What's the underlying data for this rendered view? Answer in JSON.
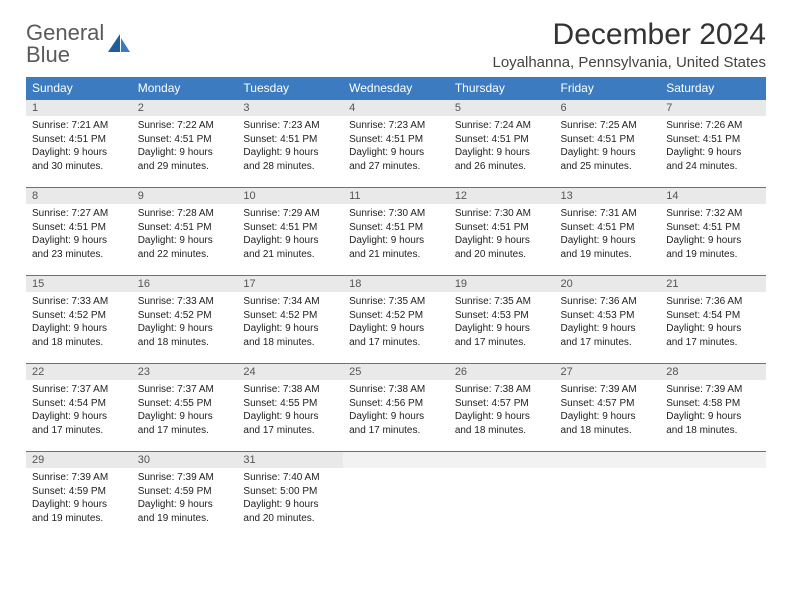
{
  "logo": {
    "line1": "General",
    "line2": "Blue"
  },
  "title": "December 2024",
  "location": "Loyalhanna, Pennsylvania, United States",
  "colors": {
    "header_bg": "#3c7bbf",
    "header_text": "#ffffff",
    "daynum_bg": "#e9e9e9",
    "border": "#3c7bbf",
    "title_text": "#333333",
    "body_text": "#222222"
  },
  "day_headers": [
    "Sunday",
    "Monday",
    "Tuesday",
    "Wednesday",
    "Thursday",
    "Friday",
    "Saturday"
  ],
  "weeks": [
    [
      {
        "n": "1",
        "sunrise": "Sunrise: 7:21 AM",
        "sunset": "Sunset: 4:51 PM",
        "dl1": "Daylight: 9 hours",
        "dl2": "and 30 minutes."
      },
      {
        "n": "2",
        "sunrise": "Sunrise: 7:22 AM",
        "sunset": "Sunset: 4:51 PM",
        "dl1": "Daylight: 9 hours",
        "dl2": "and 29 minutes."
      },
      {
        "n": "3",
        "sunrise": "Sunrise: 7:23 AM",
        "sunset": "Sunset: 4:51 PM",
        "dl1": "Daylight: 9 hours",
        "dl2": "and 28 minutes."
      },
      {
        "n": "4",
        "sunrise": "Sunrise: 7:23 AM",
        "sunset": "Sunset: 4:51 PM",
        "dl1": "Daylight: 9 hours",
        "dl2": "and 27 minutes."
      },
      {
        "n": "5",
        "sunrise": "Sunrise: 7:24 AM",
        "sunset": "Sunset: 4:51 PM",
        "dl1": "Daylight: 9 hours",
        "dl2": "and 26 minutes."
      },
      {
        "n": "6",
        "sunrise": "Sunrise: 7:25 AM",
        "sunset": "Sunset: 4:51 PM",
        "dl1": "Daylight: 9 hours",
        "dl2": "and 25 minutes."
      },
      {
        "n": "7",
        "sunrise": "Sunrise: 7:26 AM",
        "sunset": "Sunset: 4:51 PM",
        "dl1": "Daylight: 9 hours",
        "dl2": "and 24 minutes."
      }
    ],
    [
      {
        "n": "8",
        "sunrise": "Sunrise: 7:27 AM",
        "sunset": "Sunset: 4:51 PM",
        "dl1": "Daylight: 9 hours",
        "dl2": "and 23 minutes."
      },
      {
        "n": "9",
        "sunrise": "Sunrise: 7:28 AM",
        "sunset": "Sunset: 4:51 PM",
        "dl1": "Daylight: 9 hours",
        "dl2": "and 22 minutes."
      },
      {
        "n": "10",
        "sunrise": "Sunrise: 7:29 AM",
        "sunset": "Sunset: 4:51 PM",
        "dl1": "Daylight: 9 hours",
        "dl2": "and 21 minutes."
      },
      {
        "n": "11",
        "sunrise": "Sunrise: 7:30 AM",
        "sunset": "Sunset: 4:51 PM",
        "dl1": "Daylight: 9 hours",
        "dl2": "and 21 minutes."
      },
      {
        "n": "12",
        "sunrise": "Sunrise: 7:30 AM",
        "sunset": "Sunset: 4:51 PM",
        "dl1": "Daylight: 9 hours",
        "dl2": "and 20 minutes."
      },
      {
        "n": "13",
        "sunrise": "Sunrise: 7:31 AM",
        "sunset": "Sunset: 4:51 PM",
        "dl1": "Daylight: 9 hours",
        "dl2": "and 19 minutes."
      },
      {
        "n": "14",
        "sunrise": "Sunrise: 7:32 AM",
        "sunset": "Sunset: 4:51 PM",
        "dl1": "Daylight: 9 hours",
        "dl2": "and 19 minutes."
      }
    ],
    [
      {
        "n": "15",
        "sunrise": "Sunrise: 7:33 AM",
        "sunset": "Sunset: 4:52 PM",
        "dl1": "Daylight: 9 hours",
        "dl2": "and 18 minutes."
      },
      {
        "n": "16",
        "sunrise": "Sunrise: 7:33 AM",
        "sunset": "Sunset: 4:52 PM",
        "dl1": "Daylight: 9 hours",
        "dl2": "and 18 minutes."
      },
      {
        "n": "17",
        "sunrise": "Sunrise: 7:34 AM",
        "sunset": "Sunset: 4:52 PM",
        "dl1": "Daylight: 9 hours",
        "dl2": "and 18 minutes."
      },
      {
        "n": "18",
        "sunrise": "Sunrise: 7:35 AM",
        "sunset": "Sunset: 4:52 PM",
        "dl1": "Daylight: 9 hours",
        "dl2": "and 17 minutes."
      },
      {
        "n": "19",
        "sunrise": "Sunrise: 7:35 AM",
        "sunset": "Sunset: 4:53 PM",
        "dl1": "Daylight: 9 hours",
        "dl2": "and 17 minutes."
      },
      {
        "n": "20",
        "sunrise": "Sunrise: 7:36 AM",
        "sunset": "Sunset: 4:53 PM",
        "dl1": "Daylight: 9 hours",
        "dl2": "and 17 minutes."
      },
      {
        "n": "21",
        "sunrise": "Sunrise: 7:36 AM",
        "sunset": "Sunset: 4:54 PM",
        "dl1": "Daylight: 9 hours",
        "dl2": "and 17 minutes."
      }
    ],
    [
      {
        "n": "22",
        "sunrise": "Sunrise: 7:37 AM",
        "sunset": "Sunset: 4:54 PM",
        "dl1": "Daylight: 9 hours",
        "dl2": "and 17 minutes."
      },
      {
        "n": "23",
        "sunrise": "Sunrise: 7:37 AM",
        "sunset": "Sunset: 4:55 PM",
        "dl1": "Daylight: 9 hours",
        "dl2": "and 17 minutes."
      },
      {
        "n": "24",
        "sunrise": "Sunrise: 7:38 AM",
        "sunset": "Sunset: 4:55 PM",
        "dl1": "Daylight: 9 hours",
        "dl2": "and 17 minutes."
      },
      {
        "n": "25",
        "sunrise": "Sunrise: 7:38 AM",
        "sunset": "Sunset: 4:56 PM",
        "dl1": "Daylight: 9 hours",
        "dl2": "and 17 minutes."
      },
      {
        "n": "26",
        "sunrise": "Sunrise: 7:38 AM",
        "sunset": "Sunset: 4:57 PM",
        "dl1": "Daylight: 9 hours",
        "dl2": "and 18 minutes."
      },
      {
        "n": "27",
        "sunrise": "Sunrise: 7:39 AM",
        "sunset": "Sunset: 4:57 PM",
        "dl1": "Daylight: 9 hours",
        "dl2": "and 18 minutes."
      },
      {
        "n": "28",
        "sunrise": "Sunrise: 7:39 AM",
        "sunset": "Sunset: 4:58 PM",
        "dl1": "Daylight: 9 hours",
        "dl2": "and 18 minutes."
      }
    ],
    [
      {
        "n": "29",
        "sunrise": "Sunrise: 7:39 AM",
        "sunset": "Sunset: 4:59 PM",
        "dl1": "Daylight: 9 hours",
        "dl2": "and 19 minutes."
      },
      {
        "n": "30",
        "sunrise": "Sunrise: 7:39 AM",
        "sunset": "Sunset: 4:59 PM",
        "dl1": "Daylight: 9 hours",
        "dl2": "and 19 minutes."
      },
      {
        "n": "31",
        "sunrise": "Sunrise: 7:40 AM",
        "sunset": "Sunset: 5:00 PM",
        "dl1": "Daylight: 9 hours",
        "dl2": "and 20 minutes."
      },
      {
        "empty": true
      },
      {
        "empty": true
      },
      {
        "empty": true
      },
      {
        "empty": true
      }
    ]
  ]
}
